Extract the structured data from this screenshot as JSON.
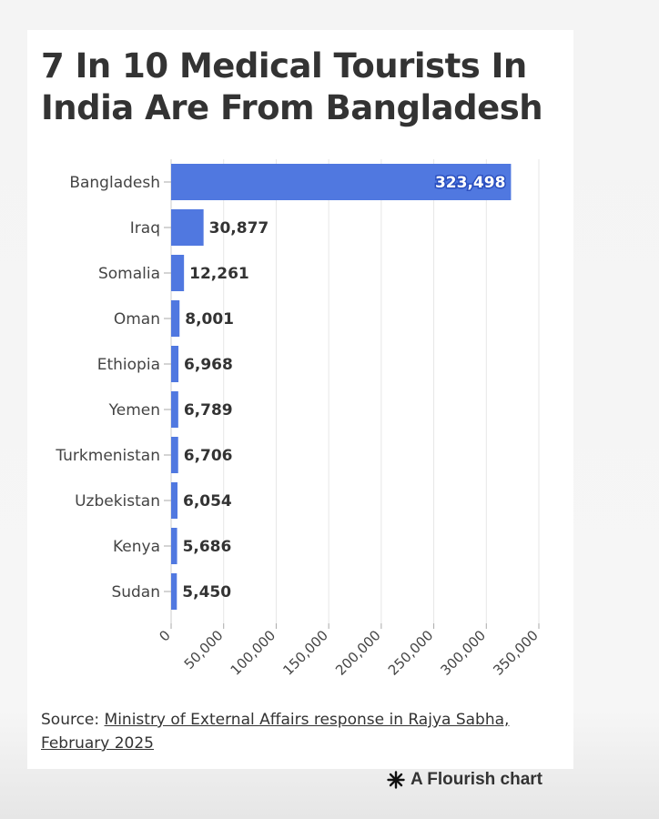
{
  "title": "7 In 10 Medical Tourists In India Are From Bangladesh",
  "chart_data": {
    "type": "bar",
    "orientation": "horizontal",
    "categories": [
      "Bangladesh",
      "Iraq",
      "Somalia",
      "Oman",
      "Ethiopia",
      "Yemen",
      "Turkmenistan",
      "Uzbekistan",
      "Kenya",
      "Sudan"
    ],
    "values": [
      323498,
      30877,
      12261,
      8001,
      6968,
      6789,
      6706,
      6054,
      5686,
      5450
    ],
    "value_labels": [
      "323,498",
      "30,877",
      "12,261",
      "8,001",
      "6,968",
      "6,789",
      "6,706",
      "6,054",
      "5,686",
      "5,450"
    ],
    "xlim": [
      0,
      350000
    ],
    "xticks": [
      0,
      50000,
      100000,
      150000,
      200000,
      250000,
      300000,
      350000
    ],
    "xtick_labels": [
      "0",
      "50,000",
      "100,000",
      "150,000",
      "200,000",
      "250,000",
      "300,000",
      "350,000"
    ],
    "grid": true,
    "bar_color": "#5078e0"
  },
  "source": {
    "prefix": "Source: ",
    "link_text": "Ministry of External Affairs response in Rajya Sabha, February 2025"
  },
  "credit": {
    "label": "A Flourish chart",
    "icon": "flourish-asterisk-icon"
  }
}
